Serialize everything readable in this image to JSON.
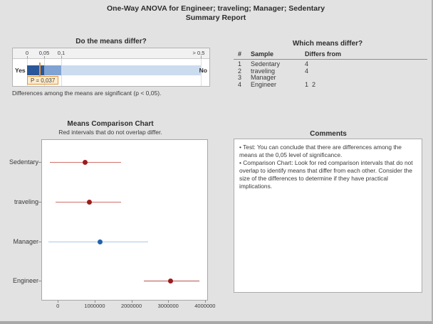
{
  "header": {
    "title_line1": "One-Way ANOVA for Engineer; traveling; Manager; Sedentary",
    "title_line2": "Summary Report"
  },
  "means_differ": {
    "title": "Do the means differ?",
    "scale_labels": [
      "0",
      "0,05",
      "0,1",
      "> 0,5"
    ],
    "scale_breakpoints": [
      0,
      0.05,
      0.1,
      0.5
    ],
    "yes_label": "Yes",
    "no_label": "No",
    "p_value": 0.037,
    "p_label": "P = 0,037",
    "caption": "Differences among the means are significant (p < 0,05).",
    "colors": {
      "segment_dark": "#2a579a",
      "segment_mid": "#7fa3d3",
      "segment_light": "#ccdcef",
      "marker": "#e2953c",
      "p_box_bg": "#fdeccd",
      "p_box_border": "#e2953c"
    }
  },
  "which_differ": {
    "title": "Which means differ?",
    "columns": [
      "#",
      "Sample",
      "Differs from"
    ],
    "rows": [
      {
        "num": "1",
        "sample": "Sedentary",
        "differs": "4"
      },
      {
        "num": "2",
        "sample": "traveling",
        "differs": "4"
      },
      {
        "num": "3",
        "sample": "Manager",
        "differs": ""
      },
      {
        "num": "4",
        "sample": "Engineer",
        "differs": "1  2"
      }
    ]
  },
  "chart_data": {
    "type": "interval",
    "title": "Means Comparison Chart",
    "subtitle": "Red intervals that do not overlap differ.",
    "categories": [
      "Sedentary",
      "traveling",
      "Manager",
      "Engineer"
    ],
    "series": [
      {
        "name": "Sedentary",
        "mean": 750000,
        "lower": -210000,
        "upper": 1720000,
        "line_color": "#cf6f6a",
        "dot_color": "#9b1c1e"
      },
      {
        "name": "traveling",
        "mean": 850000,
        "lower": -60000,
        "upper": 1720000,
        "line_color": "#cf6f6a",
        "dot_color": "#9b1c1e"
      },
      {
        "name": "Manager",
        "mean": 1140000,
        "lower": -250000,
        "upper": 2450000,
        "line_color": "#aec8e2",
        "dot_color": "#2063ac"
      },
      {
        "name": "Engineer",
        "mean": 3070000,
        "lower": 2340000,
        "upper": 3850000,
        "line_color": "#b25450",
        "dot_color": "#9b1c1e"
      }
    ],
    "xticks": [
      0,
      1000000,
      2000000,
      3000000,
      4000000
    ],
    "xtick_labels": [
      "0",
      "1000000",
      "2000000",
      "3000000",
      "4000000"
    ],
    "xlim": [
      -450000,
      4080000
    ],
    "grid": false,
    "legend": false
  },
  "comments": {
    "title": "Comments",
    "bullet_glyph": "•",
    "bullets": [
      "Test: You can conclude that there are differences among the means at the 0,05 level of significance.",
      "Comparison Chart: Look for red comparison intervals that do not overlap to identify means that differ from each other. Consider the size of the differences to determine if they have practical implications."
    ]
  }
}
